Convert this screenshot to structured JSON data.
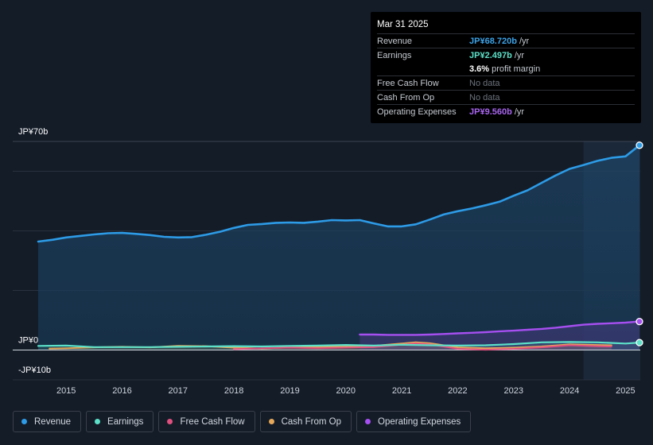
{
  "tooltip": {
    "date": "Mar 31 2025",
    "rows": [
      {
        "label": "Revenue",
        "value": "JP¥68.720b",
        "unit": "/yr",
        "color": "#3ca3e8"
      },
      {
        "label": "Earnings",
        "value": "JP¥2.497b",
        "unit": "/yr",
        "color": "#5ce0c8"
      },
      {
        "label": "",
        "value": "3.6%",
        "unit": "profit margin",
        "color": "#ffffff"
      },
      {
        "label": "Free Cash Flow",
        "nodata": "No data"
      },
      {
        "label": "Cash From Op",
        "nodata": "No data"
      },
      {
        "label": "Operating Expenses",
        "value": "JP¥9.560b",
        "unit": "/yr",
        "color": "#a865f0"
      }
    ]
  },
  "legend": [
    {
      "label": "Revenue",
      "color": "#2d9be6"
    },
    {
      "label": "Earnings",
      "color": "#5ce0c8"
    },
    {
      "label": "Free Cash Flow",
      "color": "#e0507f"
    },
    {
      "label": "Cash From Op",
      "color": "#e6a85a"
    },
    {
      "label": "Operating Expenses",
      "color": "#a64ff0"
    }
  ],
  "chart_data": {
    "type": "area",
    "y_tick_labels": [
      "JP¥70b",
      "JP¥0",
      "-JP¥10b"
    ],
    "ylim": [
      -10,
      70
    ],
    "x_ticks": [
      "2015",
      "2016",
      "2017",
      "2018",
      "2019",
      "2020",
      "2021",
      "2022",
      "2023",
      "2024",
      "2025"
    ],
    "xlim": [
      2014.5,
      2025.25
    ],
    "forecast_start": 2024.25,
    "series": [
      {
        "name": "Revenue",
        "color": "#2d9be6",
        "x": [
          2014.5,
          2014.75,
          2015.0,
          2015.25,
          2015.5,
          2015.75,
          2016.0,
          2016.25,
          2016.5,
          2016.75,
          2017.0,
          2017.25,
          2017.5,
          2017.75,
          2018.0,
          2018.25,
          2018.5,
          2018.75,
          2019.0,
          2019.25,
          2019.5,
          2019.75,
          2020.0,
          2020.25,
          2020.5,
          2020.75,
          2021.0,
          2021.25,
          2021.5,
          2021.75,
          2022.0,
          2022.25,
          2022.5,
          2022.75,
          2023.0,
          2023.25,
          2023.5,
          2023.75,
          2024.0,
          2024.25,
          2024.5,
          2024.75,
          2025.0,
          2025.25
        ],
        "values": [
          36.4,
          37.0,
          37.8,
          38.3,
          38.8,
          39.2,
          39.3,
          39.0,
          38.6,
          38.0,
          37.8,
          37.9,
          38.7,
          39.7,
          41.0,
          42.0,
          42.3,
          42.7,
          42.8,
          42.7,
          43.1,
          43.6,
          43.5,
          43.6,
          42.5,
          41.5,
          41.5,
          42.2,
          43.8,
          45.5,
          46.6,
          47.5,
          48.6,
          49.8,
          51.8,
          53.6,
          56.1,
          58.6,
          60.8,
          62.1,
          63.5,
          64.5,
          65.0,
          68.72
        ]
      },
      {
        "name": "Earnings",
        "color": "#5ce0c8",
        "x": [
          2014.5,
          2015.0,
          2015.5,
          2016.0,
          2016.5,
          2017.0,
          2017.5,
          2018.0,
          2018.5,
          2019.0,
          2019.5,
          2020.0,
          2020.5,
          2021.0,
          2021.5,
          2022.0,
          2022.5,
          2023.0,
          2023.5,
          2024.0,
          2024.5,
          2025.0,
          2025.25
        ],
        "values": [
          1.4,
          1.5,
          1.0,
          1.0,
          1.0,
          1.1,
          1.2,
          1.3,
          1.2,
          1.4,
          1.5,
          1.7,
          1.5,
          1.8,
          1.6,
          1.5,
          1.6,
          2.0,
          2.6,
          2.7,
          2.6,
          2.2,
          2.497
        ]
      },
      {
        "name": "Free Cash Flow",
        "color": "#e0507f",
        "x": [
          2018.0,
          2018.5,
          2019.0,
          2019.5,
          2020.0,
          2020.5,
          2021.0,
          2021.25,
          2021.5,
          2021.75,
          2022.0,
          2022.5,
          2023.0,
          2023.5,
          2024.0,
          2024.5,
          2024.75
        ],
        "values": [
          0.3,
          0.6,
          0.8,
          0.6,
          0.8,
          1.0,
          1.8,
          2.2,
          1.9,
          1.2,
          0.4,
          0.1,
          0.4,
          0.9,
          1.6,
          1.3,
          1.2
        ]
      },
      {
        "name": "Cash From Op",
        "color": "#e6a85a",
        "x": [
          2014.7,
          2015.0,
          2015.5,
          2016.0,
          2016.5,
          2017.0,
          2017.5,
          2018.0,
          2018.5,
          2019.0,
          2019.5,
          2020.0,
          2020.5,
          2021.0,
          2021.25,
          2021.5,
          2021.75,
          2022.0,
          2022.5,
          2023.0,
          2023.5,
          2024.0,
          2024.5,
          2024.75
        ],
        "values": [
          0.5,
          0.6,
          0.9,
          1.1,
          0.9,
          1.4,
          1.3,
          0.8,
          0.5,
          0.9,
          1.0,
          1.2,
          1.4,
          2.2,
          2.6,
          2.3,
          1.6,
          0.9,
          0.6,
          0.8,
          1.2,
          1.9,
          1.7,
          1.6
        ]
      },
      {
        "name": "Operating Expenses",
        "color": "#a64ff0",
        "x": [
          2020.25,
          2020.5,
          2020.75,
          2021.0,
          2021.25,
          2021.5,
          2021.75,
          2022.0,
          2022.25,
          2022.5,
          2022.75,
          2023.0,
          2023.25,
          2023.5,
          2023.75,
          2024.0,
          2024.25,
          2024.5,
          2024.75,
          2025.0,
          2025.25
        ],
        "values": [
          5.2,
          5.2,
          5.1,
          5.1,
          5.1,
          5.2,
          5.4,
          5.6,
          5.8,
          6.0,
          6.3,
          6.5,
          6.8,
          7.1,
          7.5,
          8.0,
          8.5,
          8.8,
          9.0,
          9.2,
          9.56
        ]
      }
    ]
  }
}
